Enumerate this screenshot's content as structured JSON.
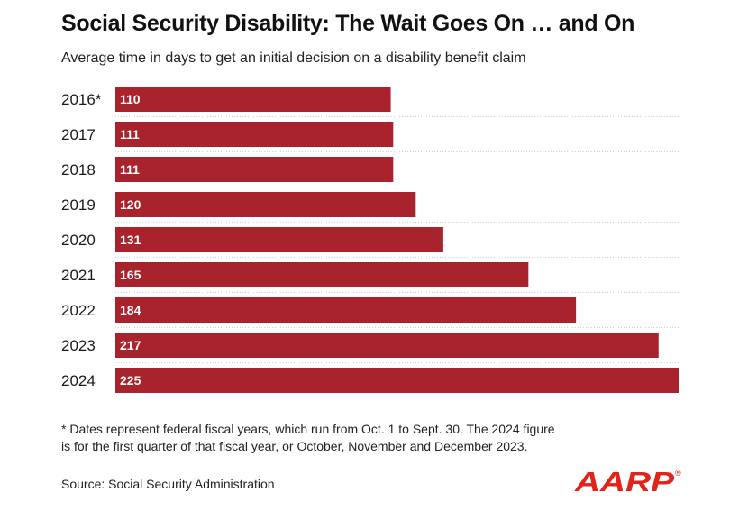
{
  "header": {
    "title": "Social Security Disability: The Wait Goes On … and On",
    "subtitle": "Average time in days to get an initial decision on a disability benefit claim"
  },
  "chart_data": {
    "type": "bar",
    "orientation": "horizontal",
    "categories": [
      "2016*",
      "2017",
      "2018",
      "2019",
      "2020",
      "2021",
      "2022",
      "2023",
      "2024"
    ],
    "values": [
      110,
      111,
      111,
      120,
      131,
      165,
      184,
      217,
      225
    ],
    "title": "Social Security Disability: The Wait Goes On … and On",
    "subtitle": "Average time in days to get an initial decision on a disability benefit claim",
    "xlabel": "",
    "ylabel": "",
    "xlim": [
      0,
      225
    ],
    "data_labels": "inside-left",
    "grid": "dotted separators between rows",
    "colors": {
      "bar": "#a8232b",
      "label": "#ffffff",
      "separator": "#cfcfcf"
    }
  },
  "footer": {
    "footnote": "* Dates represent federal fiscal years, which run from Oct. 1 to Sept. 30. The 2024 figure is for the first quarter of that fiscal year, or October, November and December 2023.",
    "source": "Source: Social Security Administration"
  },
  "logo": {
    "text": "AARP",
    "registered": "®",
    "color": "#e2231a",
    "icon": "aarp-logo"
  }
}
